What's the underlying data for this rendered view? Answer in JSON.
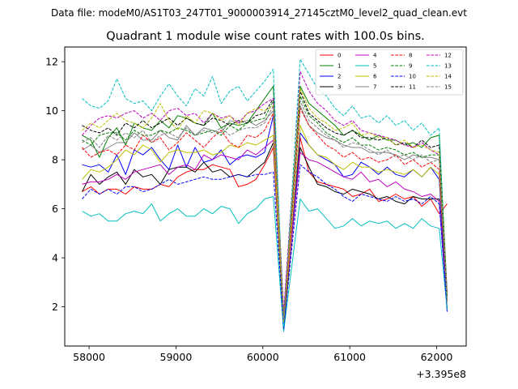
{
  "suptitle": "Data file: modeM0/AS1T03_247T01_9000003914_27145cztM0_level2_quad_clean.evt",
  "chart_data": {
    "type": "line",
    "title": "Quadrant 1 module wise count rates with 100.0s bins.",
    "xlabel": "",
    "ylabel": "",
    "x_offset_label": "+3.395e8",
    "xlim": [
      57720,
      62340
    ],
    "ylim": [
      0.4,
      12.6
    ],
    "xticks": [
      58000,
      59000,
      60000,
      61000,
      62000
    ],
    "xtick_labels": [
      "58000",
      "59000",
      "60000",
      "61000",
      "62000"
    ],
    "yticks": [
      2,
      4,
      6,
      8,
      10,
      12
    ],
    "ytick_labels": [
      "2",
      "4",
      "6",
      "8",
      "10",
      "12"
    ],
    "x": [
      57920,
      58020,
      58120,
      58220,
      58320,
      58420,
      58520,
      58620,
      58720,
      58820,
      58920,
      59020,
      59120,
      59220,
      59320,
      59420,
      59520,
      59620,
      59720,
      59820,
      59920,
      60020,
      60120,
      60240,
      60430,
      60530,
      60630,
      60730,
      60830,
      60930,
      61030,
      61130,
      61230,
      61330,
      61430,
      61530,
      61630,
      61730,
      61830,
      61930,
      62030,
      62120
    ],
    "legend_position": "top-right",
    "series": [
      {
        "name": "0",
        "color": "#ff0000",
        "dash": "solid",
        "values": [
          6.7,
          6.9,
          6.6,
          6.8,
          6.8,
          6.6,
          6.9,
          6.8,
          6.8,
          7.0,
          6.9,
          7.3,
          7.5,
          7.6,
          7.6,
          7.8,
          7.7,
          7.6,
          6.9,
          7.0,
          7.2,
          7.8,
          8.5,
          1.3,
          8.9,
          7.5,
          7.1,
          7.0,
          6.9,
          6.8,
          6.5,
          6.6,
          6.8,
          6.3,
          6.4,
          6.6,
          6.4,
          6.5,
          6.1,
          6.4,
          5.8,
          6.2
        ]
      },
      {
        "name": "1",
        "color": "#008000",
        "dash": "solid",
        "values": [
          9.0,
          8.8,
          8.1,
          8.9,
          9.3,
          8.6,
          9.5,
          9.3,
          9.2,
          9.6,
          9.3,
          9.8,
          9.7,
          9.5,
          9.4,
          9.9,
          9.3,
          9.5,
          9.4,
          9.5,
          10.0,
          10.5,
          11.0,
          1.2,
          11.0,
          10.3,
          10.0,
          9.7,
          9.4,
          9.0,
          9.2,
          9.0,
          8.8,
          9.0,
          8.8,
          8.8,
          8.6,
          8.7,
          8.5,
          8.9,
          9.0,
          2.6
        ]
      },
      {
        "name": "2",
        "color": "#0000ff",
        "dash": "solid",
        "values": [
          7.8,
          7.7,
          7.8,
          7.5,
          8.2,
          7.4,
          8.4,
          8.2,
          8.5,
          8.0,
          7.6,
          8.6,
          7.7,
          8.5,
          7.9,
          8.0,
          8.4,
          7.8,
          8.1,
          8.2,
          8.1,
          8.3,
          9.8,
          1.0,
          9.1,
          8.6,
          8.2,
          8.0,
          7.8,
          7.3,
          7.4,
          7.9,
          7.7,
          7.4,
          7.7,
          7.4,
          7.3,
          7.6,
          7.3,
          7.7,
          7.2,
          1.8
        ]
      },
      {
        "name": "3",
        "color": "#000000",
        "dash": "solid",
        "values": [
          6.7,
          7.4,
          7.0,
          7.3,
          7.5,
          7.0,
          7.6,
          7.3,
          7.4,
          7.0,
          7.6,
          7.7,
          7.7,
          7.5,
          7.9,
          7.5,
          7.6,
          7.3,
          7.4,
          7.3,
          7.6,
          7.9,
          8.7,
          1.2,
          8.5,
          7.7,
          7.0,
          6.9,
          6.7,
          6.6,
          6.8,
          6.7,
          6.6,
          6.4,
          6.5,
          6.3,
          6.2,
          6.5,
          6.4,
          6.4,
          6.4,
          1.9
        ]
      },
      {
        "name": "4",
        "color": "#bf00bf",
        "dash": "solid",
        "values": [
          7.0,
          7.1,
          7.1,
          7.2,
          7.4,
          7.2,
          7.5,
          7.6,
          7.7,
          7.8,
          7.4,
          7.7,
          7.8,
          7.6,
          8.2,
          8.0,
          8.2,
          8.1,
          8.0,
          8.4,
          8.2,
          8.5,
          8.8,
          1.5,
          8.3,
          8.0,
          7.9,
          7.7,
          7.5,
          7.3,
          7.2,
          7.5,
          7.1,
          7.2,
          6.9,
          7.1,
          6.8,
          6.7,
          6.5,
          6.6,
          6.3,
          2.0
        ]
      },
      {
        "name": "5",
        "color": "#00bfbf",
        "dash": "solid",
        "values": [
          5.9,
          5.7,
          5.8,
          5.5,
          5.5,
          5.8,
          5.9,
          5.8,
          6.2,
          5.5,
          5.8,
          6.0,
          5.7,
          5.7,
          6.0,
          5.8,
          6.1,
          6.0,
          5.4,
          5.8,
          6.0,
          6.4,
          6.5,
          1.0,
          6.4,
          5.9,
          6.0,
          5.6,
          5.2,
          5.3,
          5.6,
          5.3,
          5.5,
          5.4,
          5.5,
          5.2,
          5.4,
          5.2,
          5.6,
          5.3,
          5.2,
          1.9
        ]
      },
      {
        "name": "6",
        "color": "#bfbf00",
        "dash": "solid",
        "values": [
          7.2,
          7.6,
          7.5,
          7.7,
          8.0,
          8.4,
          8.2,
          8.6,
          8.4,
          7.9,
          8.3,
          8.4,
          8.3,
          8.3,
          8.4,
          8.2,
          8.3,
          8.6,
          8.5,
          8.7,
          8.6,
          8.8,
          9.0,
          1.3,
          9.4,
          8.6,
          8.2,
          8.1,
          7.8,
          7.6,
          7.9,
          7.7,
          7.7,
          7.5,
          7.6,
          7.5,
          7.4,
          7.6,
          7.3,
          7.7,
          7.4,
          2.4
        ]
      },
      {
        "name": "7",
        "color": "#808080",
        "dash": "solid",
        "values": [
          8.4,
          8.6,
          8.3,
          8.5,
          8.7,
          8.7,
          9.1,
          8.8,
          8.8,
          9.2,
          8.9,
          8.8,
          9.4,
          9.0,
          9.3,
          9.2,
          9.1,
          9.6,
          9.5,
          9.6,
          9.4,
          9.6,
          10.0,
          1.5,
          10.2,
          9.4,
          9.1,
          8.9,
          8.8,
          8.6,
          8.5,
          8.5,
          8.3,
          8.3,
          8.3,
          8.2,
          8.0,
          8.2,
          8.1,
          8.1,
          8.0,
          2.5
        ]
      },
      {
        "name": "8",
        "color": "#ff0000",
        "dash": "dashed",
        "values": [
          8.5,
          8.1,
          8.3,
          8.4,
          8.2,
          8.6,
          8.4,
          9.0,
          8.7,
          8.9,
          8.4,
          8.7,
          9.1,
          8.8,
          8.5,
          8.9,
          9.2,
          8.7,
          8.5,
          9.0,
          8.9,
          9.2,
          9.9,
          1.4,
          10.1,
          9.4,
          9.0,
          8.6,
          8.4,
          8.1,
          8.3,
          8.0,
          8.1,
          7.9,
          8.0,
          8.2,
          7.8,
          8.0,
          7.7,
          7.9,
          7.6,
          2.2
        ]
      },
      {
        "name": "9",
        "color": "#008000",
        "dash": "dashed",
        "values": [
          8.8,
          8.6,
          9.0,
          9.1,
          9.1,
          8.8,
          9.2,
          9.0,
          9.0,
          9.2,
          9.1,
          9.3,
          9.2,
          9.0,
          9.1,
          9.2,
          9.0,
          9.4,
          9.2,
          9.5,
          9.6,
          9.7,
          10.4,
          1.6,
          10.6,
          9.8,
          9.5,
          9.1,
          8.9,
          8.7,
          8.9,
          8.6,
          8.6,
          8.4,
          8.5,
          8.4,
          8.2,
          8.3,
          8.1,
          8.2,
          8.2,
          2.3
        ]
      },
      {
        "name": "10",
        "color": "#0000ff",
        "dash": "dashed",
        "values": [
          6.4,
          6.8,
          6.6,
          6.8,
          6.6,
          6.9,
          6.9,
          6.7,
          6.8,
          7.0,
          7.2,
          7.0,
          7.1,
          7.2,
          7.3,
          7.2,
          7.2,
          7.3,
          7.4,
          7.3,
          7.4,
          7.4,
          7.5,
          1.1,
          7.8,
          7.5,
          7.3,
          7.0,
          6.8,
          6.5,
          6.3,
          6.6,
          6.5,
          6.4,
          6.3,
          6.5,
          6.3,
          6.4,
          6.2,
          6.5,
          6.2,
          1.9
        ]
      },
      {
        "name": "11",
        "color": "#000000",
        "dash": "dashed",
        "values": [
          9.4,
          9.2,
          9.1,
          9.3,
          9.0,
          9.5,
          9.3,
          9.6,
          9.3,
          9.5,
          9.7,
          9.4,
          9.7,
          9.5,
          9.4,
          9.7,
          9.6,
          9.4,
          9.6,
          9.5,
          9.8,
          9.9,
          10.5,
          1.6,
          10.8,
          9.9,
          9.6,
          9.3,
          9.1,
          9.0,
          9.2,
          8.9,
          8.9,
          8.8,
          8.9,
          8.6,
          8.7,
          8.5,
          8.8,
          8.5,
          8.6,
          2.4
        ]
      },
      {
        "name": "12",
        "color": "#bf00bf",
        "dash": "dashed",
        "values": [
          9.0,
          9.4,
          9.7,
          9.8,
          9.7,
          9.9,
          10.0,
          9.7,
          9.9,
          9.6,
          10.0,
          10.1,
          9.8,
          9.9,
          9.5,
          9.9,
          9.7,
          9.8,
          9.5,
          9.9,
          10.0,
          10.3,
          10.5,
          1.8,
          11.6,
          10.8,
          10.3,
          10.0,
          9.6,
          9.4,
          9.6,
          9.2,
          9.1,
          9.0,
          8.9,
          8.8,
          8.6,
          8.5,
          8.7,
          8.4,
          8.2,
          2.6
        ]
      },
      {
        "name": "13",
        "color": "#00bfbf",
        "dash": "dashed",
        "values": [
          10.5,
          10.2,
          10.1,
          10.4,
          11.3,
          10.5,
          10.3,
          10.4,
          10.0,
          10.6,
          11.1,
          10.6,
          10.2,
          10.9,
          10.6,
          11.4,
          10.3,
          10.8,
          11.0,
          10.4,
          10.8,
          11.2,
          11.7,
          1.2,
          12.1,
          11.5,
          10.9,
          10.6,
          10.1,
          9.8,
          10.2,
          9.7,
          9.8,
          9.5,
          9.8,
          9.4,
          9.6,
          9.2,
          9.5,
          9.0,
          9.3,
          1.9
        ]
      },
      {
        "name": "14",
        "color": "#bfbf00",
        "dash": "dashed",
        "values": [
          9.2,
          9.5,
          9.3,
          9.6,
          9.9,
          9.6,
          9.5,
          9.3,
          9.7,
          10.3,
          9.6,
          9.2,
          9.8,
          9.5,
          10.0,
          9.9,
          9.6,
          9.8,
          9.4,
          9.9,
          10.1,
          10.0,
          10.2,
          1.4,
          10.9,
          10.1,
          9.7,
          9.5,
          9.2,
          9.3,
          9.5,
          9.0,
          9.1,
          8.9,
          8.9,
          8.6,
          8.8,
          8.5,
          8.6,
          8.4,
          8.3,
          2.5
        ]
      },
      {
        "name": "15",
        "color": "#808080",
        "dash": "dashed",
        "values": [
          8.7,
          8.9,
          8.5,
          9.0,
          8.8,
          9.1,
          8.9,
          9.2,
          8.7,
          9.0,
          9.1,
          8.9,
          9.3,
          9.0,
          9.2,
          9.1,
          9.3,
          9.0,
          9.2,
          9.3,
          9.3,
          9.5,
          10.2,
          1.5,
          10.4,
          9.6,
          9.3,
          9.0,
          8.8,
          8.5,
          8.7,
          8.6,
          8.4,
          8.2,
          8.4,
          8.1,
          8.2,
          8.0,
          8.2,
          7.9,
          8.0,
          2.3
        ]
      }
    ]
  }
}
